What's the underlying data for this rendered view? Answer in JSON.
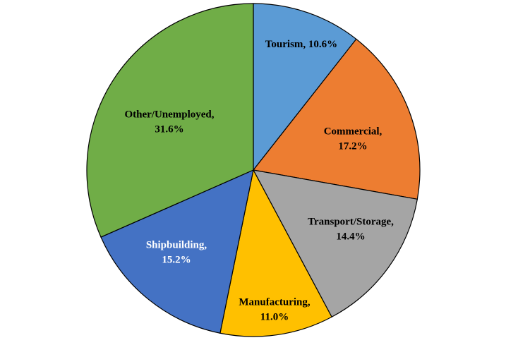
{
  "chart_data": {
    "type": "pie",
    "slices": [
      {
        "label": "Tourism",
        "value": 10.6,
        "display": [
          "Tourism, 10.6%"
        ],
        "color": "#5b9bd5",
        "text_color": "#000000"
      },
      {
        "label": "Commercial",
        "value": 17.2,
        "display": [
          "Commercial,",
          "17.2%"
        ],
        "color": "#ed7d31",
        "text_color": "#000000"
      },
      {
        "label": "Transport/Storage",
        "value": 14.4,
        "display": [
          "Transport/Storage,",
          "14.4%"
        ],
        "color": "#a5a5a5",
        "text_color": "#000000"
      },
      {
        "label": "Manufacturing",
        "value": 11.0,
        "display": [
          "Manufacturing,",
          "11.0%"
        ],
        "color": "#ffc000",
        "text_color": "#000000"
      },
      {
        "label": "Shipbuilding",
        "value": 15.2,
        "display": [
          "Shipbuilding,",
          "15.2%"
        ],
        "color": "#4472c4",
        "text_color": "#ffffff"
      },
      {
        "label": "Other/Unemployed",
        "value": 31.6,
        "display": [
          "Other/Unemployed,",
          "31.6%"
        ],
        "color": "#70ad47",
        "text_color": "#000000"
      }
    ],
    "start_angle_deg": 0,
    "direction": "clockwise",
    "legend": "none"
  }
}
